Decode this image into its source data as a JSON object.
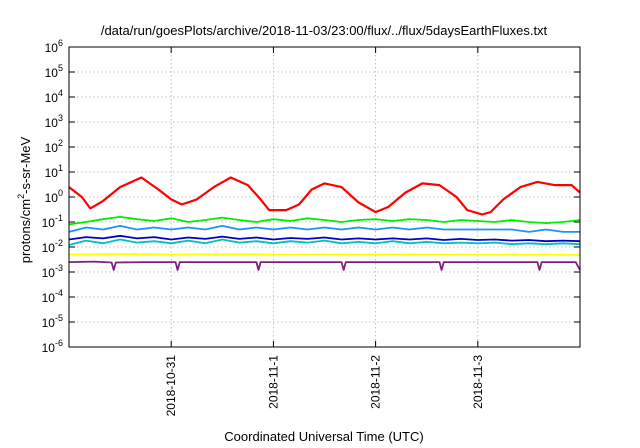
{
  "chart_data": {
    "type": "line",
    "title": "/data/run/goesPlots/archive/2018-11-03/23:00/flux/../flux/5daysEarthFluxes.txt",
    "xlabel": "Coordinated Universal Time (UTC)",
    "ylabel_parts": [
      "protons/cm",
      "2",
      "-s-sr-MeV"
    ],
    "y_scale": "log",
    "ylim": [
      1e-06,
      1000000.0
    ],
    "y_ticks": [
      {
        "base": "10",
        "exp": "-6",
        "value": 1e-06
      },
      {
        "base": "10",
        "exp": "-5",
        "value": 1e-05
      },
      {
        "base": "10",
        "exp": "-4",
        "value": 0.0001
      },
      {
        "base": "10",
        "exp": "-3",
        "value": 0.001
      },
      {
        "base": "10",
        "exp": "-2",
        "value": 0.01
      },
      {
        "base": "10",
        "exp": "-1",
        "value": 0.1
      },
      {
        "base": "10",
        "exp": "0",
        "value": 1
      },
      {
        "base": "10",
        "exp": "1",
        "value": 10
      },
      {
        "base": "10",
        "exp": "2",
        "value": 100
      },
      {
        "base": "10",
        "exp": "3",
        "value": 1000
      },
      {
        "base": "10",
        "exp": "4",
        "value": 10000
      },
      {
        "base": "10",
        "exp": "5",
        "value": 100000
      },
      {
        "base": "10",
        "exp": "6",
        "value": 1000000
      }
    ],
    "x_range": [
      "2018-10-30T00:00",
      "2018-11-04T00:00"
    ],
    "x_ticks": [
      {
        "label": "2018-10-31",
        "value": "2018-10-31T00:00"
      },
      {
        "label": "2018-11-1",
        "value": "2018-11-01T00:00"
      },
      {
        "label": "2018-11-2",
        "value": "2018-11-02T00:00"
      },
      {
        "label": "2018-11-3",
        "value": "2018-11-03T00:00"
      }
    ],
    "grid": true,
    "series": [
      {
        "color": "#ff0000",
        "points": [
          [
            "2018-10-30T00:00",
            2.5
          ],
          [
            "2018-10-30T03:00",
            1.0
          ],
          [
            "2018-10-30T05:00",
            0.35
          ],
          [
            "2018-10-30T08:00",
            0.7
          ],
          [
            "2018-10-30T12:00",
            2.5
          ],
          [
            "2018-10-30T17:00",
            6.0
          ],
          [
            "2018-10-30T21:00",
            2.0
          ],
          [
            "2018-10-31T00:00",
            0.8
          ],
          [
            "2018-10-31T02:30",
            0.5
          ],
          [
            "2018-10-31T06:00",
            0.8
          ],
          [
            "2018-10-31T10:00",
            2.5
          ],
          [
            "2018-10-31T14:00",
            6.0
          ],
          [
            "2018-10-31T18:00",
            3.0
          ],
          [
            "2018-10-31T21:00",
            0.8
          ],
          [
            "2018-10-31T23:00",
            0.3
          ],
          [
            "2018-11-01T03:00",
            0.3
          ],
          [
            "2018-11-01T06:00",
            0.5
          ],
          [
            "2018-11-01T09:00",
            2.0
          ],
          [
            "2018-11-01T12:00",
            3.5
          ],
          [
            "2018-11-01T16:00",
            2.5
          ],
          [
            "2018-11-01T20:00",
            0.6
          ],
          [
            "2018-11-02T00:00",
            0.25
          ],
          [
            "2018-11-02T03:00",
            0.4
          ],
          [
            "2018-11-02T07:00",
            1.5
          ],
          [
            "2018-11-02T11:00",
            3.5
          ],
          [
            "2018-11-02T15:00",
            3.0
          ],
          [
            "2018-11-02T19:00",
            1.0
          ],
          [
            "2018-11-02T21:30",
            0.3
          ],
          [
            "2018-11-03T01:00",
            0.2
          ],
          [
            "2018-11-03T03:00",
            0.25
          ],
          [
            "2018-11-03T06:00",
            0.8
          ],
          [
            "2018-11-03T10:00",
            2.5
          ],
          [
            "2018-11-03T14:00",
            4.0
          ],
          [
            "2018-11-03T18:00",
            3.0
          ],
          [
            "2018-11-03T22:00",
            3.0
          ],
          [
            "2018-11-04T00:00",
            1.5
          ]
        ]
      },
      {
        "color": "#00ee00",
        "points": [
          [
            "2018-10-30T00:00",
            0.08
          ],
          [
            "2018-10-30T04:00",
            0.1
          ],
          [
            "2018-10-30T08:00",
            0.13
          ],
          [
            "2018-10-30T12:00",
            0.16
          ],
          [
            "2018-10-30T16:00",
            0.13
          ],
          [
            "2018-10-30T20:00",
            0.11
          ],
          [
            "2018-10-31T00:00",
            0.14
          ],
          [
            "2018-10-31T04:00",
            0.1
          ],
          [
            "2018-10-31T08:00",
            0.12
          ],
          [
            "2018-10-31T12:00",
            0.15
          ],
          [
            "2018-10-31T16:00",
            0.12
          ],
          [
            "2018-10-31T20:00",
            0.1
          ],
          [
            "2018-11-01T00:00",
            0.13
          ],
          [
            "2018-11-01T04:00",
            0.11
          ],
          [
            "2018-11-01T08:00",
            0.14
          ],
          [
            "2018-11-01T12:00",
            0.12
          ],
          [
            "2018-11-01T16:00",
            0.1
          ],
          [
            "2018-11-01T20:00",
            0.12
          ],
          [
            "2018-11-02T00:00",
            0.13
          ],
          [
            "2018-11-02T04:00",
            0.11
          ],
          [
            "2018-11-02T08:00",
            0.13
          ],
          [
            "2018-11-02T12:00",
            0.12
          ],
          [
            "2018-11-02T16:00",
            0.1
          ],
          [
            "2018-11-02T20:00",
            0.12
          ],
          [
            "2018-11-03T00:00",
            0.11
          ],
          [
            "2018-11-03T04:00",
            0.1
          ],
          [
            "2018-11-03T08:00",
            0.12
          ],
          [
            "2018-11-03T12:00",
            0.1
          ],
          [
            "2018-11-03T16:00",
            0.09
          ],
          [
            "2018-11-03T20:00",
            0.1
          ],
          [
            "2018-11-04T00:00",
            0.12
          ]
        ]
      },
      {
        "color": "#1e90ff",
        "points": [
          [
            "2018-10-30T00:00",
            0.04
          ],
          [
            "2018-10-30T04:00",
            0.06
          ],
          [
            "2018-10-30T08:00",
            0.05
          ],
          [
            "2018-10-30T12:00",
            0.07
          ],
          [
            "2018-10-30T16:00",
            0.05
          ],
          [
            "2018-10-30T20:00",
            0.06
          ],
          [
            "2018-10-31T00:00",
            0.05
          ],
          [
            "2018-10-31T04:00",
            0.06
          ],
          [
            "2018-10-31T08:00",
            0.05
          ],
          [
            "2018-10-31T12:00",
            0.07
          ],
          [
            "2018-10-31T16:00",
            0.05
          ],
          [
            "2018-10-31T20:00",
            0.06
          ],
          [
            "2018-11-01T00:00",
            0.05
          ],
          [
            "2018-11-01T04:00",
            0.06
          ],
          [
            "2018-11-01T08:00",
            0.05
          ],
          [
            "2018-11-01T12:00",
            0.06
          ],
          [
            "2018-11-01T16:00",
            0.05
          ],
          [
            "2018-11-01T20:00",
            0.06
          ],
          [
            "2018-11-02T00:00",
            0.05
          ],
          [
            "2018-11-02T04:00",
            0.06
          ],
          [
            "2018-11-02T08:00",
            0.05
          ],
          [
            "2018-11-02T12:00",
            0.06
          ],
          [
            "2018-11-02T16:00",
            0.05
          ],
          [
            "2018-11-02T20:00",
            0.05
          ],
          [
            "2018-11-03T00:00",
            0.05
          ],
          [
            "2018-11-03T04:00",
            0.05
          ],
          [
            "2018-11-03T08:00",
            0.05
          ],
          [
            "2018-11-03T12:00",
            0.04
          ],
          [
            "2018-11-03T16:00",
            0.05
          ],
          [
            "2018-11-03T20:00",
            0.04
          ],
          [
            "2018-11-04T00:00",
            0.04
          ]
        ]
      },
      {
        "color": "#00bfbf",
        "points": [
          [
            "2018-10-30T00:00",
            0.012
          ],
          [
            "2018-10-30T04:00",
            0.018
          ],
          [
            "2018-10-30T08:00",
            0.014
          ],
          [
            "2018-10-30T12:00",
            0.02
          ],
          [
            "2018-10-30T16:00",
            0.015
          ],
          [
            "2018-10-30T20:00",
            0.017
          ],
          [
            "2018-10-31T00:00",
            0.014
          ],
          [
            "2018-10-31T04:00",
            0.018
          ],
          [
            "2018-10-31T08:00",
            0.014
          ],
          [
            "2018-10-31T12:00",
            0.02
          ],
          [
            "2018-10-31T16:00",
            0.015
          ],
          [
            "2018-10-31T20:00",
            0.017
          ],
          [
            "2018-11-01T00:00",
            0.014
          ],
          [
            "2018-11-01T04:00",
            0.017
          ],
          [
            "2018-11-01T08:00",
            0.015
          ],
          [
            "2018-11-01T12:00",
            0.018
          ],
          [
            "2018-11-01T16:00",
            0.014
          ],
          [
            "2018-11-01T20:00",
            0.016
          ],
          [
            "2018-11-02T00:00",
            0.014
          ],
          [
            "2018-11-02T04:00",
            0.017
          ],
          [
            "2018-11-02T08:00",
            0.014
          ],
          [
            "2018-11-02T12:00",
            0.016
          ],
          [
            "2018-11-02T16:00",
            0.014
          ],
          [
            "2018-11-02T20:00",
            0.015
          ],
          [
            "2018-11-03T00:00",
            0.014
          ],
          [
            "2018-11-03T04:00",
            0.015
          ],
          [
            "2018-11-03T08:00",
            0.013
          ],
          [
            "2018-11-03T12:00",
            0.014
          ],
          [
            "2018-11-03T16:00",
            0.013
          ],
          [
            "2018-11-03T20:00",
            0.014
          ],
          [
            "2018-11-04T00:00",
            0.013
          ]
        ]
      },
      {
        "color": "#0000cc",
        "points": [
          [
            "2018-10-30T00:00",
            0.02
          ],
          [
            "2018-10-30T04:00",
            0.025
          ],
          [
            "2018-10-30T08:00",
            0.022
          ],
          [
            "2018-10-30T12:00",
            0.028
          ],
          [
            "2018-10-30T16:00",
            0.022
          ],
          [
            "2018-10-30T20:00",
            0.025
          ],
          [
            "2018-10-31T00:00",
            0.02
          ],
          [
            "2018-10-31T04:00",
            0.024
          ],
          [
            "2018-10-31T08:00",
            0.021
          ],
          [
            "2018-10-31T12:00",
            0.026
          ],
          [
            "2018-10-31T16:00",
            0.021
          ],
          [
            "2018-10-31T20:00",
            0.024
          ],
          [
            "2018-11-01T00:00",
            0.02
          ],
          [
            "2018-11-01T04:00",
            0.023
          ],
          [
            "2018-11-01T08:00",
            0.021
          ],
          [
            "2018-11-01T12:00",
            0.024
          ],
          [
            "2018-11-01T16:00",
            0.02
          ],
          [
            "2018-11-01T20:00",
            0.022
          ],
          [
            "2018-11-02T00:00",
            0.02
          ],
          [
            "2018-11-02T04:00",
            0.022
          ],
          [
            "2018-11-02T08:00",
            0.02
          ],
          [
            "2018-11-02T12:00",
            0.022
          ],
          [
            "2018-11-02T16:00",
            0.019
          ],
          [
            "2018-11-02T20:00",
            0.021
          ],
          [
            "2018-11-03T00:00",
            0.019
          ],
          [
            "2018-11-03T04:00",
            0.02
          ],
          [
            "2018-11-03T08:00",
            0.018
          ],
          [
            "2018-11-03T12:00",
            0.019
          ],
          [
            "2018-11-03T16:00",
            0.017
          ],
          [
            "2018-11-03T20:00",
            0.018
          ],
          [
            "2018-11-04T00:00",
            0.017
          ]
        ]
      },
      {
        "color": "#ffff00",
        "points": [
          [
            "2018-10-30T00:00",
            0.005
          ],
          [
            "2018-10-30T12:00",
            0.0052
          ],
          [
            "2018-10-31T00:00",
            0.005
          ],
          [
            "2018-10-31T12:00",
            0.0051
          ],
          [
            "2018-11-01T00:00",
            0.005
          ],
          [
            "2018-11-01T12:00",
            0.005
          ],
          [
            "2018-11-02T00:00",
            0.0049
          ],
          [
            "2018-11-02T12:00",
            0.005
          ],
          [
            "2018-11-03T00:00",
            0.0049
          ],
          [
            "2018-11-03T12:00",
            0.0049
          ],
          [
            "2018-11-04T00:00",
            0.0048
          ]
        ]
      },
      {
        "color": "#7f1f7f",
        "points": [
          [
            "2018-10-30T00:00",
            0.0025
          ],
          [
            "2018-10-30T06:00",
            0.0026
          ],
          [
            "2018-10-30T10:00",
            0.0024
          ],
          [
            "2018-10-30T10:30",
            0.0012
          ],
          [
            "2018-10-30T11:00",
            0.0024
          ],
          [
            "2018-10-30T18:00",
            0.0025
          ],
          [
            "2018-10-31T01:00",
            0.0025
          ],
          [
            "2018-10-31T01:30",
            0.0012
          ],
          [
            "2018-10-31T02:00",
            0.0025
          ],
          [
            "2018-10-31T12:00",
            0.0025
          ],
          [
            "2018-10-31T20:00",
            0.0025
          ],
          [
            "2018-10-31T20:30",
            0.0012
          ],
          [
            "2018-10-31T21:00",
            0.0025
          ],
          [
            "2018-11-01T12:00",
            0.0025
          ],
          [
            "2018-11-01T16:00",
            0.0025
          ],
          [
            "2018-11-01T16:30",
            0.0012
          ],
          [
            "2018-11-01T17:00",
            0.0025
          ],
          [
            "2018-11-02T06:00",
            0.0025
          ],
          [
            "2018-11-02T15:00",
            0.0025
          ],
          [
            "2018-11-02T15:30",
            0.0012
          ],
          [
            "2018-11-02T16:00",
            0.0025
          ],
          [
            "2018-11-03T08:00",
            0.0025
          ],
          [
            "2018-11-03T14:00",
            0.0025
          ],
          [
            "2018-11-03T14:30",
            0.0012
          ],
          [
            "2018-11-03T15:00",
            0.0025
          ],
          [
            "2018-11-03T23:00",
            0.0025
          ],
          [
            "2018-11-04T00:00",
            0.0012
          ]
        ]
      }
    ]
  }
}
